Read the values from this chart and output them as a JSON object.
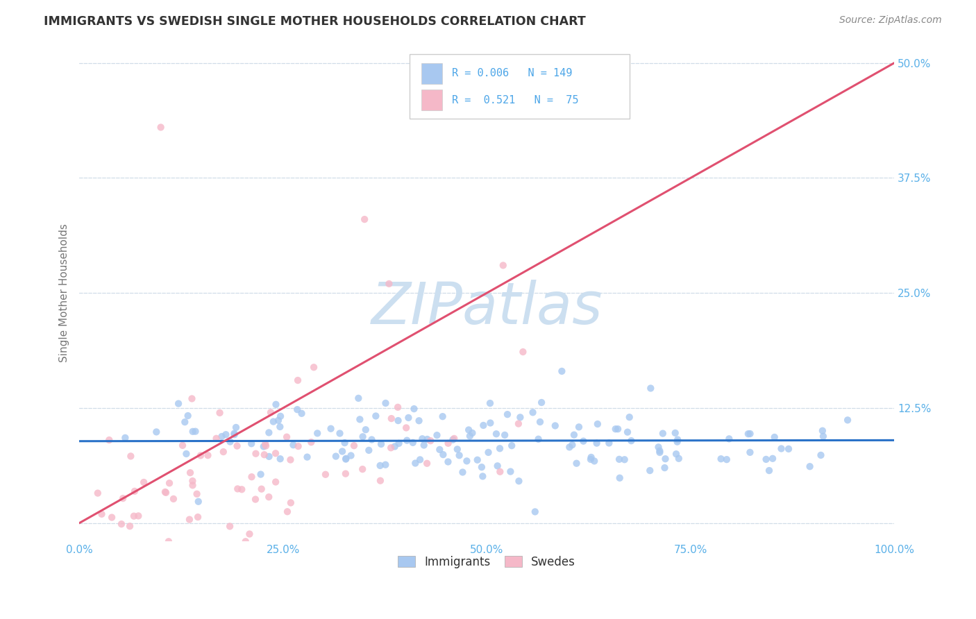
{
  "title": "IMMIGRANTS VS SWEDISH SINGLE MOTHER HOUSEHOLDS CORRELATION CHART",
  "source": "Source: ZipAtlas.com",
  "ylabel": "Single Mother Households",
  "xlim": [
    0.0,
    1.0
  ],
  "ylim": [
    -0.02,
    0.52
  ],
  "xticks": [
    0.0,
    0.25,
    0.5,
    0.75,
    1.0
  ],
  "xticklabels": [
    "0.0%",
    "25.0%",
    "50.0%",
    "75.0%",
    "100.0%"
  ],
  "yticks": [
    0.0,
    0.125,
    0.25,
    0.375,
    0.5
  ],
  "yticklabels": [
    "",
    "12.5%",
    "25.0%",
    "37.5%",
    "50.0%"
  ],
  "immigrants_R": 0.006,
  "immigrants_N": 149,
  "swedes_R": 0.521,
  "swedes_N": 75,
  "blue_scatter_color": "#a8c8f0",
  "pink_scatter_color": "#f5b8c8",
  "trend_blue_color": "#2a72c8",
  "trend_pink_color": "#e05070",
  "axis_tick_color": "#5ab0e8",
  "title_color": "#333333",
  "source_color": "#888888",
  "grid_color": "#d0dde8",
  "background_color": "#ffffff",
  "watermark_text": "ZIPatlas",
  "watermark_color": "#ccdff0",
  "legend_label1": "Immigrants",
  "legend_label2": "Swedes",
  "legend_border_color": "#cccccc",
  "legend_text_color": "#4da6e8"
}
